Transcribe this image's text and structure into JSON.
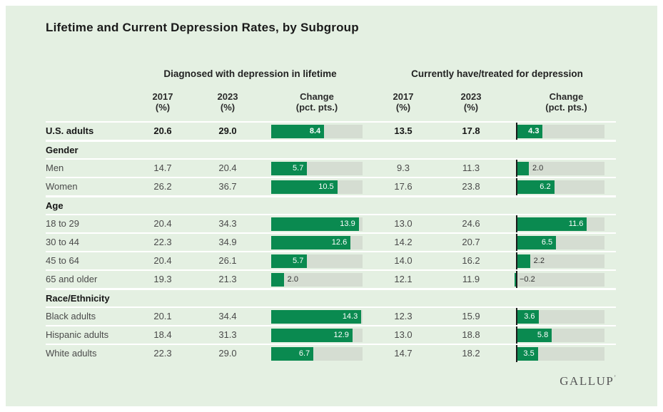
{
  "title": "Lifetime and Current Depression Rates, by Subgroup",
  "logo": {
    "text": "GALLUP",
    "mark": "’"
  },
  "colors": {
    "page_background": "#ffffff",
    "card_background": "#e4f0e2",
    "bar_green": "#0a8a50",
    "bar_track": "#d5ddd2",
    "separator": "#ffffff",
    "text_dark": "#1a1a1a",
    "text_gray": "#4a4a4a"
  },
  "chart_data": {
    "type": "table",
    "title": "Lifetime and Current Depression Rates, by Subgroup",
    "bar_scale_max": 14.5,
    "inside_label_min": 3.0,
    "sections": [
      {
        "label": "Diagnosed with depression in lifetime"
      },
      {
        "label": "Currently have/treated for depression"
      }
    ],
    "column_headers": {
      "year_2017": "2017",
      "year_2023": "2023",
      "pct_unit": "(%)",
      "change": "Change",
      "change_unit": "(pct. pts.)"
    },
    "rows": [
      {
        "type": "total",
        "label": "U.S. adults",
        "lifetime": {
          "y2017": "20.6",
          "y2023": "29.0",
          "change": 8.4,
          "change_label": "8.4"
        },
        "current": {
          "y2017": "13.5",
          "y2023": "17.8",
          "change": 4.3,
          "change_label": "4.3"
        }
      },
      {
        "type": "section",
        "label": "Gender"
      },
      {
        "type": "data",
        "label": "Men",
        "lifetime": {
          "y2017": "14.7",
          "y2023": "20.4",
          "change": 5.7,
          "change_label": "5.7"
        },
        "current": {
          "y2017": "9.3",
          "y2023": "11.3",
          "change": 2.0,
          "change_label": "2.0"
        }
      },
      {
        "type": "data",
        "label": "Women",
        "lifetime": {
          "y2017": "26.2",
          "y2023": "36.7",
          "change": 10.5,
          "change_label": "10.5"
        },
        "current": {
          "y2017": "17.6",
          "y2023": "23.8",
          "change": 6.2,
          "change_label": "6.2"
        }
      },
      {
        "type": "section",
        "label": "Age"
      },
      {
        "type": "data",
        "label": "18 to 29",
        "lifetime": {
          "y2017": "20.4",
          "y2023": "34.3",
          "change": 13.9,
          "change_label": "13.9"
        },
        "current": {
          "y2017": "13.0",
          "y2023": "24.6",
          "change": 11.6,
          "change_label": "11.6"
        }
      },
      {
        "type": "data",
        "label": "30 to 44",
        "lifetime": {
          "y2017": "22.3",
          "y2023": "34.9",
          "change": 12.6,
          "change_label": "12.6"
        },
        "current": {
          "y2017": "14.2",
          "y2023": "20.7",
          "change": 6.5,
          "change_label": "6.5"
        }
      },
      {
        "type": "data",
        "label": "45 to 64",
        "lifetime": {
          "y2017": "20.4",
          "y2023": "26.1",
          "change": 5.7,
          "change_label": "5.7"
        },
        "current": {
          "y2017": "14.0",
          "y2023": "16.2",
          "change": 2.2,
          "change_label": "2.2"
        }
      },
      {
        "type": "data",
        "label": "65 and older",
        "lifetime": {
          "y2017": "19.3",
          "y2023": "21.3",
          "change": 2.0,
          "change_label": "2.0"
        },
        "current": {
          "y2017": "12.1",
          "y2023": "11.9",
          "change": -0.2,
          "change_label": "−0.2"
        }
      },
      {
        "type": "section",
        "label": "Race/Ethnicity"
      },
      {
        "type": "data",
        "label": "Black adults",
        "lifetime": {
          "y2017": "20.1",
          "y2023": "34.4",
          "change": 14.3,
          "change_label": "14.3"
        },
        "current": {
          "y2017": "12.3",
          "y2023": "15.9",
          "change": 3.6,
          "change_label": "3.6"
        }
      },
      {
        "type": "data",
        "label": "Hispanic adults",
        "lifetime": {
          "y2017": "18.4",
          "y2023": "31.3",
          "change": 12.9,
          "change_label": "12.9"
        },
        "current": {
          "y2017": "13.0",
          "y2023": "18.8",
          "change": 5.8,
          "change_label": "5.8"
        }
      },
      {
        "type": "data",
        "label": "White adults",
        "lifetime": {
          "y2017": "22.3",
          "y2023": "29.0",
          "change": 6.7,
          "change_label": "6.7"
        },
        "current": {
          "y2017": "14.7",
          "y2023": "18.2",
          "change": 3.5,
          "change_label": "3.5"
        }
      }
    ]
  }
}
